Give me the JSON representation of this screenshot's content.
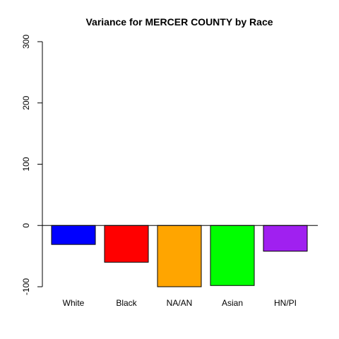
{
  "chart_data": {
    "type": "bar",
    "title": "Variance for MERCER COUNTY by Race",
    "xlabel": "",
    "ylabel": "",
    "categories": [
      "White",
      "Black",
      "NA/AN",
      "Asian",
      "HN/PI"
    ],
    "values": [
      -31,
      -60,
      -100,
      -98,
      -42
    ],
    "colors": [
      "#0000ff",
      "#ff0000",
      "#ffa500",
      "#00ff00",
      "#a020f0"
    ],
    "ylim": [
      -100,
      300
    ],
    "yticks": [
      -100,
      0,
      100,
      200,
      300
    ],
    "grid": false,
    "legend": "none"
  }
}
